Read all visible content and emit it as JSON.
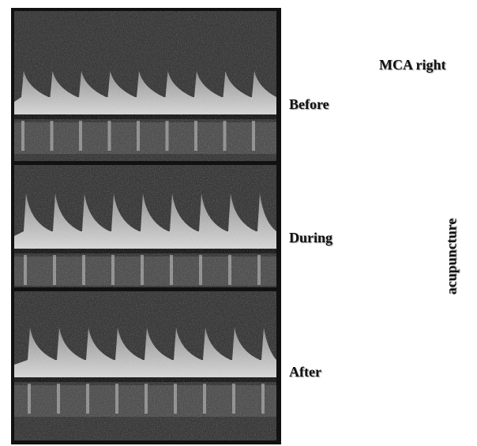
{
  "header": {
    "title": "MCA right"
  },
  "panels": [
    {
      "label": "Before"
    },
    {
      "label": "During"
    },
    {
      "label": "After"
    }
  ],
  "side_label": "acupuncture"
}
